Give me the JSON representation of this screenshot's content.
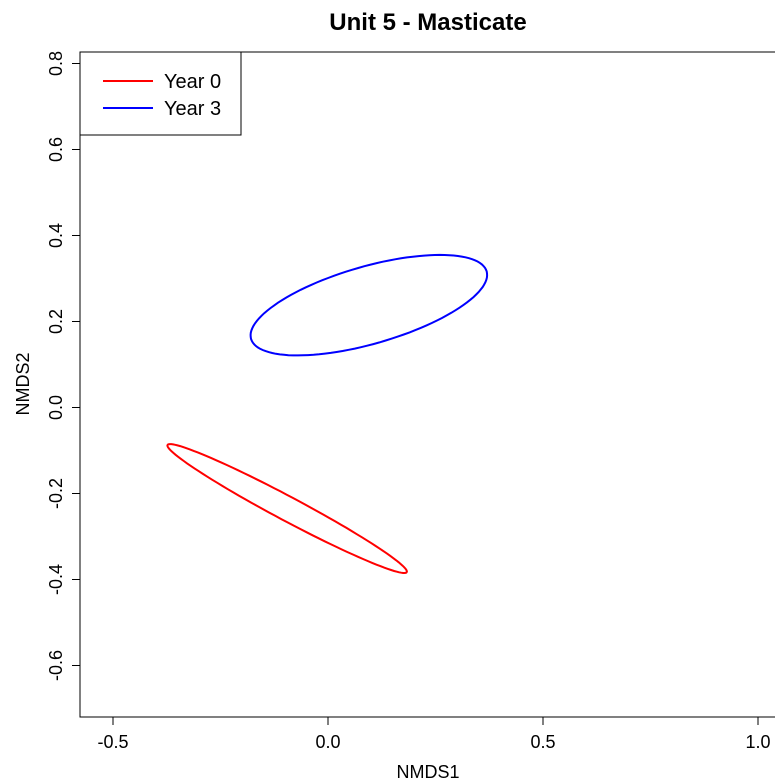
{
  "chart_data": {
    "type": "line",
    "title": "Unit 5 - Masticate",
    "xlabel": "NMDS1",
    "ylabel": "NMDS2",
    "xlim": [
      -0.58,
      1.0
    ],
    "ylim": [
      -0.72,
      0.82
    ],
    "x_ticks": [
      -0.5,
      0.0,
      0.5,
      1.0
    ],
    "x_tick_labels": [
      "-0.5",
      "0.0",
      "0.5",
      "1.0"
    ],
    "y_ticks": [
      -0.6,
      -0.4,
      -0.2,
      0.0,
      0.2,
      0.4,
      0.6,
      0.8
    ],
    "y_tick_labels": [
      "-0.6",
      "-0.4",
      "-0.2",
      "0.0",
      "0.2",
      "0.4",
      "0.6",
      "0.8"
    ],
    "grid": false,
    "legend_position": "top-left",
    "series": [
      {
        "name": "Year 0",
        "color": "#ff0000",
        "shape": "ellipse",
        "center": [
          -0.095,
          -0.235
        ],
        "extreme_points": {
          "upper_left": [
            -0.375,
            -0.088
          ],
          "lower_right": [
            0.18,
            -0.388
          ]
        },
        "semi_axis_major": 0.315,
        "semi_axis_minor": 0.028,
        "angle_deg": -28
      },
      {
        "name": "Year 3",
        "color": "#0000ff",
        "shape": "ellipse",
        "center": [
          0.095,
          0.238
        ],
        "extreme_points": {
          "left": [
            -0.18,
            0.18
          ],
          "right": [
            0.37,
            0.295
          ]
        },
        "semi_axis_major": 0.285,
        "semi_axis_minor": 0.09,
        "angle_deg": 16
      }
    ]
  }
}
